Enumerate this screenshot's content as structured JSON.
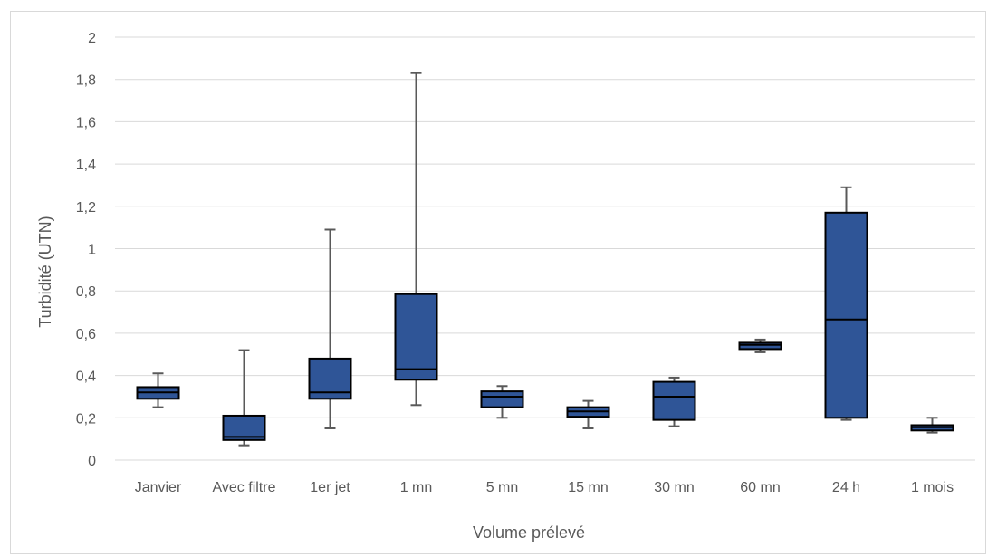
{
  "chart_data": {
    "type": "box",
    "xlabel": "Volume prélevé",
    "ylabel": "Turbidité (UTN)",
    "ylim": [
      0,
      2
    ],
    "ytick_labels": [
      "0",
      "0,2",
      "0,4",
      "0,6",
      "0,8",
      "1",
      "1,2",
      "1,4",
      "1,6",
      "1,8",
      "2"
    ],
    "grid": true,
    "legend": "none",
    "box_color": "#2f5597",
    "box_border": "#000000",
    "whisker_color": "#595959",
    "grid_color": "#d9d9d9",
    "categories": [
      "Janvier",
      "Avec filtre",
      "1er jet",
      "1 mn",
      "5 mn",
      "15 mn",
      "30 mn",
      "60 mn",
      "24 h",
      "1 mois"
    ],
    "boxes": [
      {
        "min": 0.25,
        "q1": 0.29,
        "median": 0.32,
        "q3": 0.345,
        "max": 0.41
      },
      {
        "min": 0.07,
        "q1": 0.095,
        "median": 0.11,
        "q3": 0.21,
        "max": 0.52
      },
      {
        "min": 0.15,
        "q1": 0.29,
        "median": 0.32,
        "q3": 0.48,
        "max": 1.09
      },
      {
        "min": 0.26,
        "q1": 0.38,
        "median": 0.43,
        "q3": 0.785,
        "max": 1.83
      },
      {
        "min": 0.2,
        "q1": 0.25,
        "median": 0.3,
        "q3": 0.325,
        "max": 0.35
      },
      {
        "min": 0.15,
        "q1": 0.205,
        "median": 0.23,
        "q3": 0.25,
        "max": 0.28
      },
      {
        "min": 0.16,
        "q1": 0.19,
        "median": 0.3,
        "q3": 0.37,
        "max": 0.39
      },
      {
        "min": 0.51,
        "q1": 0.525,
        "median": 0.545,
        "q3": 0.555,
        "max": 0.57
      },
      {
        "min": 0.19,
        "q1": 0.2,
        "median": 0.665,
        "q3": 1.17,
        "max": 1.29
      },
      {
        "min": 0.13,
        "q1": 0.14,
        "median": 0.155,
        "q3": 0.165,
        "max": 0.2
      }
    ]
  }
}
